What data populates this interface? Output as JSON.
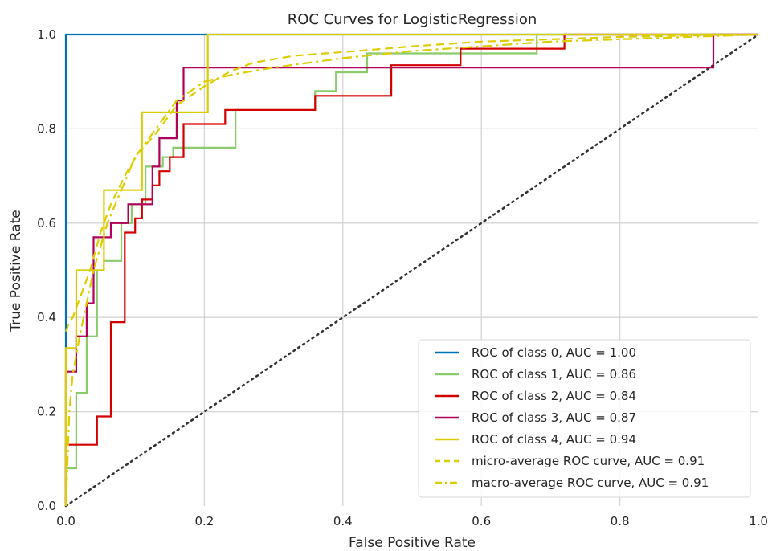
{
  "chart_data": {
    "type": "line",
    "title": "ROC Curves for LogisticRegression",
    "xlabel": "False Positive Rate",
    "ylabel": "True Positive Rate",
    "xlim": [
      0.0,
      1.0
    ],
    "ylim": [
      0.0,
      1.0
    ],
    "xticks": [
      "0.0",
      "0.2",
      "0.4",
      "0.6",
      "0.8",
      "1.0"
    ],
    "yticks": [
      "0.0",
      "0.2",
      "0.4",
      "0.6",
      "0.8",
      "1.0"
    ],
    "grid": true,
    "legend_position": "lower-right",
    "diagonal": {
      "x": [
        0,
        1
      ],
      "y": [
        0,
        1
      ],
      "color": "#333333",
      "style": "dotted"
    },
    "series": [
      {
        "name": "ROC of class 0, AUC = 1.00",
        "color": "#0072B2",
        "style": "solid",
        "x": [
          0,
          0,
          1
        ],
        "y": [
          0,
          1,
          1
        ]
      },
      {
        "name": "ROC of class 1, AUC = 0.86",
        "color": "#8ACB6C",
        "style": "solid",
        "x": [
          0,
          0,
          0.015,
          0.015,
          0.03,
          0.03,
          0.045,
          0.045,
          0.055,
          0.055,
          0.08,
          0.08,
          0.095,
          0.095,
          0.115,
          0.115,
          0.14,
          0.14,
          0.155,
          0.155,
          0.245,
          0.245,
          0.36,
          0.36,
          0.39,
          0.39,
          0.435,
          0.435,
          0.68,
          0.68,
          1.0
        ],
        "y": [
          0,
          0.08,
          0.08,
          0.24,
          0.24,
          0.36,
          0.36,
          0.5,
          0.5,
          0.52,
          0.52,
          0.6,
          0.6,
          0.64,
          0.64,
          0.72,
          0.72,
          0.74,
          0.74,
          0.76,
          0.76,
          0.84,
          0.84,
          0.88,
          0.88,
          0.92,
          0.92,
          0.96,
          0.96,
          1.0,
          1.0
        ]
      },
      {
        "name": "ROC of class 2, AUC = 0.84",
        "color": "#D40000",
        "style": "solid",
        "x": [
          0,
          0,
          0.045,
          0.045,
          0.065,
          0.065,
          0.085,
          0.085,
          0.1,
          0.1,
          0.11,
          0.11,
          0.125,
          0.125,
          0.135,
          0.135,
          0.15,
          0.15,
          0.17,
          0.17,
          0.23,
          0.23,
          0.36,
          0.36,
          0.47,
          0.47,
          0.57,
          0.57,
          0.72,
          0.72,
          1.0
        ],
        "y": [
          0,
          0.13,
          0.13,
          0.19,
          0.19,
          0.39,
          0.39,
          0.58,
          0.58,
          0.61,
          0.61,
          0.65,
          0.65,
          0.68,
          0.68,
          0.71,
          0.71,
          0.74,
          0.74,
          0.81,
          0.81,
          0.84,
          0.84,
          0.87,
          0.87,
          0.935,
          0.935,
          0.97,
          0.97,
          1.0,
          1.0
        ]
      },
      {
        "name": "ROC of class 3, AUC = 0.87",
        "color": "#B0005A",
        "style": "solid",
        "x": [
          0,
          0,
          0.015,
          0.015,
          0.03,
          0.03,
          0.04,
          0.04,
          0.065,
          0.065,
          0.09,
          0.09,
          0.125,
          0.125,
          0.135,
          0.135,
          0.16,
          0.16,
          0.17,
          0.17,
          0.935,
          0.935,
          1.0
        ],
        "y": [
          0,
          0.285,
          0.285,
          0.36,
          0.36,
          0.43,
          0.43,
          0.57,
          0.57,
          0.6,
          0.6,
          0.64,
          0.64,
          0.72,
          0.72,
          0.78,
          0.78,
          0.86,
          0.86,
          0.93,
          0.93,
          1.0,
          1.0
        ]
      },
      {
        "name": "ROC of class 4, AUC = 0.94",
        "color": "#DDCC00",
        "style": "solid",
        "x": [
          0,
          0,
          0.015,
          0.015,
          0.055,
          0.055,
          0.11,
          0.11,
          0.205,
          0.205,
          1.0
        ],
        "y": [
          0,
          0.335,
          0.335,
          0.5,
          0.5,
          0.67,
          0.67,
          0.835,
          0.835,
          1.0,
          1.0
        ]
      },
      {
        "name": "micro-average ROC curve, AUC = 0.91",
        "color": "#DDCC00",
        "style": "dashed",
        "x": [
          0,
          0.005,
          0.01,
          0.02,
          0.035,
          0.05,
          0.065,
          0.085,
          0.105,
          0.13,
          0.16,
          0.2,
          0.235,
          0.27,
          0.33,
          0.42,
          0.5,
          0.6,
          0.7,
          0.8,
          0.9,
          1.0
        ],
        "y": [
          0.37,
          0.39,
          0.4,
          0.44,
          0.5,
          0.58,
          0.64,
          0.7,
          0.75,
          0.79,
          0.85,
          0.89,
          0.92,
          0.94,
          0.955,
          0.965,
          0.975,
          0.985,
          0.99,
          0.995,
          0.998,
          1.0
        ]
      },
      {
        "name": "macro-average ROC curve, AUC = 0.91",
        "color": "#DDCC00",
        "style": "dashdot",
        "x": [
          0,
          0.005,
          0.01,
          0.02,
          0.04,
          0.06,
          0.08,
          0.1,
          0.13,
          0.16,
          0.2,
          0.24,
          0.3,
          0.4,
          0.5,
          0.6,
          0.7,
          0.8,
          0.9,
          1.0
        ],
        "y": [
          0,
          0.2,
          0.28,
          0.36,
          0.5,
          0.6,
          0.67,
          0.74,
          0.8,
          0.86,
          0.9,
          0.915,
          0.93,
          0.95,
          0.965,
          0.975,
          0.985,
          0.99,
          0.995,
          1.0
        ]
      }
    ]
  }
}
